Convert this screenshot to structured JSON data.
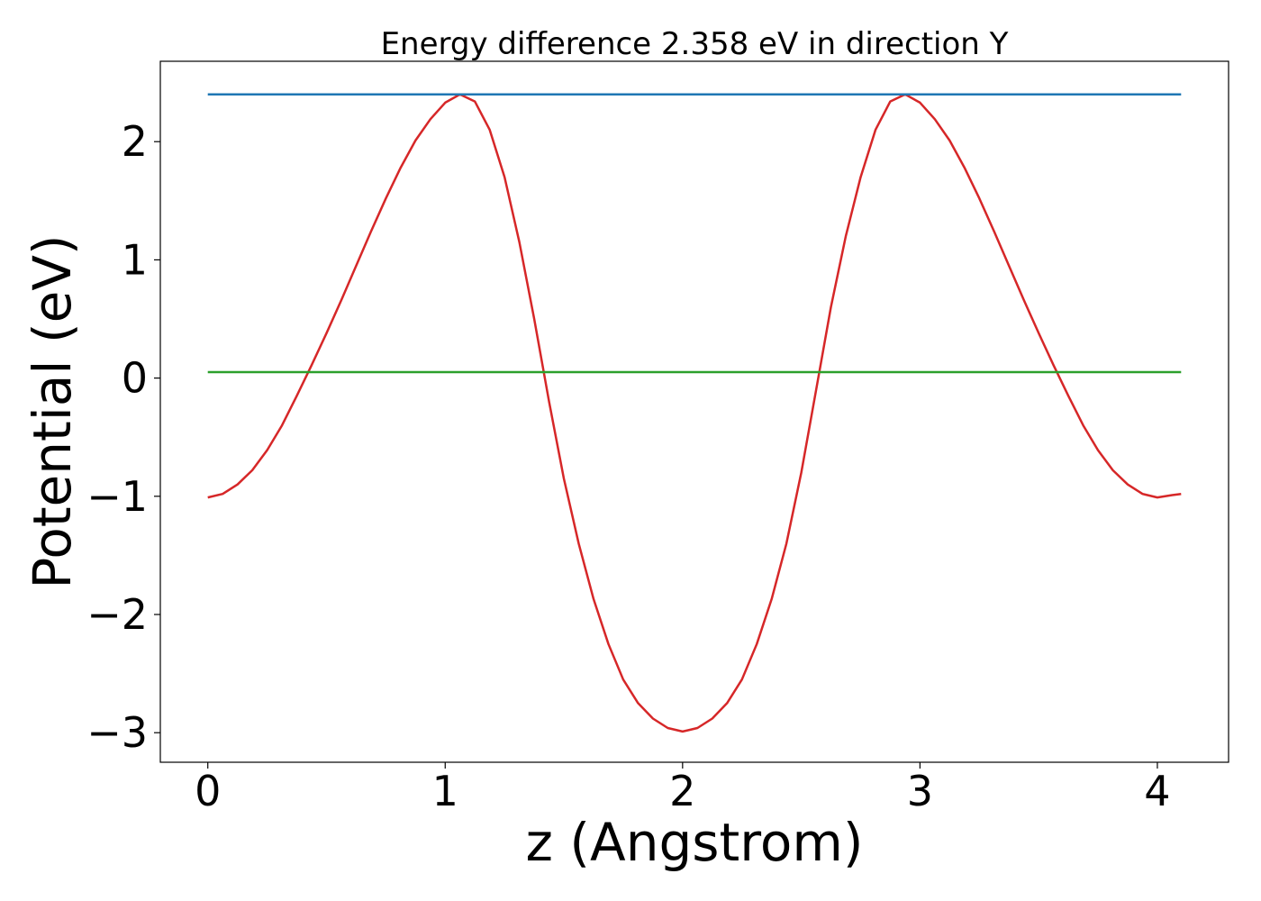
{
  "chart_data": {
    "type": "line",
    "title": "Energy difference 2.358 eV in direction Y",
    "xlabel": "z (Angstrom)",
    "ylabel": "Potential (eV)",
    "xlim": [
      -0.2,
      4.3
    ],
    "ylim": [
      -3.25,
      2.68
    ],
    "xticks": [
      0,
      1,
      2,
      3,
      4
    ],
    "xtick_labels": [
      "0",
      "1",
      "2",
      "3",
      "4"
    ],
    "yticks": [
      -3,
      -2,
      -1,
      0,
      1,
      2
    ],
    "ytick_labels": [
      "−3",
      "−2",
      "−1",
      "0",
      "1",
      "2"
    ],
    "grid": false,
    "series": [
      {
        "color": "#d62728",
        "x": [
          0,
          0.0625,
          0.125,
          0.1875,
          0.25,
          0.3125,
          0.375,
          0.4375,
          0.5,
          0.5625,
          0.625,
          0.6875,
          0.75,
          0.8125,
          0.875,
          0.9375,
          1.0,
          1.0625,
          1.125,
          1.1875,
          1.25,
          1.3125,
          1.375,
          1.4375,
          1.5,
          1.5625,
          1.625,
          1.6875,
          1.75,
          1.8125,
          1.875,
          1.9375,
          2.0,
          2.0625,
          2.125,
          2.1875,
          2.25,
          2.3125,
          2.375,
          2.4375,
          2.5,
          2.5625,
          2.625,
          2.6875,
          2.75,
          2.8125,
          2.875,
          2.9375,
          3.0,
          3.0625,
          3.125,
          3.1875,
          3.25,
          3.3125,
          3.375,
          3.4375,
          3.5,
          3.5625,
          3.625,
          3.6875,
          3.75,
          3.8125,
          3.875,
          3.9375,
          4.0,
          4.0625,
          4.1
        ],
        "y": [
          -1.01,
          -0.98,
          -0.9,
          -0.78,
          -0.61,
          -0.4,
          -0.15,
          0.11,
          0.38,
          0.66,
          0.95,
          1.24,
          1.52,
          1.78,
          2.01,
          2.19,
          2.33,
          2.4,
          2.34,
          2.1,
          1.7,
          1.15,
          0.5,
          -0.2,
          -0.85,
          -1.4,
          -1.87,
          -2.25,
          -2.55,
          -2.75,
          -2.88,
          -2.96,
          -2.99,
          -2.96,
          -2.88,
          -2.75,
          -2.55,
          -2.25,
          -1.87,
          -1.4,
          -0.8,
          -0.1,
          0.6,
          1.2,
          1.7,
          2.1,
          2.34,
          2.4,
          2.33,
          2.19,
          2.01,
          1.78,
          1.52,
          1.24,
          0.95,
          0.66,
          0.38,
          0.11,
          -0.15,
          -0.4,
          -0.61,
          -0.78,
          -0.9,
          -0.98,
          -1.01,
          -0.99,
          -0.98
        ]
      },
      {
        "color": "#1f77b4",
        "x": [
          0,
          4.1
        ],
        "y": [
          2.4,
          2.4
        ]
      },
      {
        "color": "#2ca02c",
        "x": [
          0,
          4.1
        ],
        "y": [
          0.05,
          0.05
        ]
      }
    ]
  }
}
